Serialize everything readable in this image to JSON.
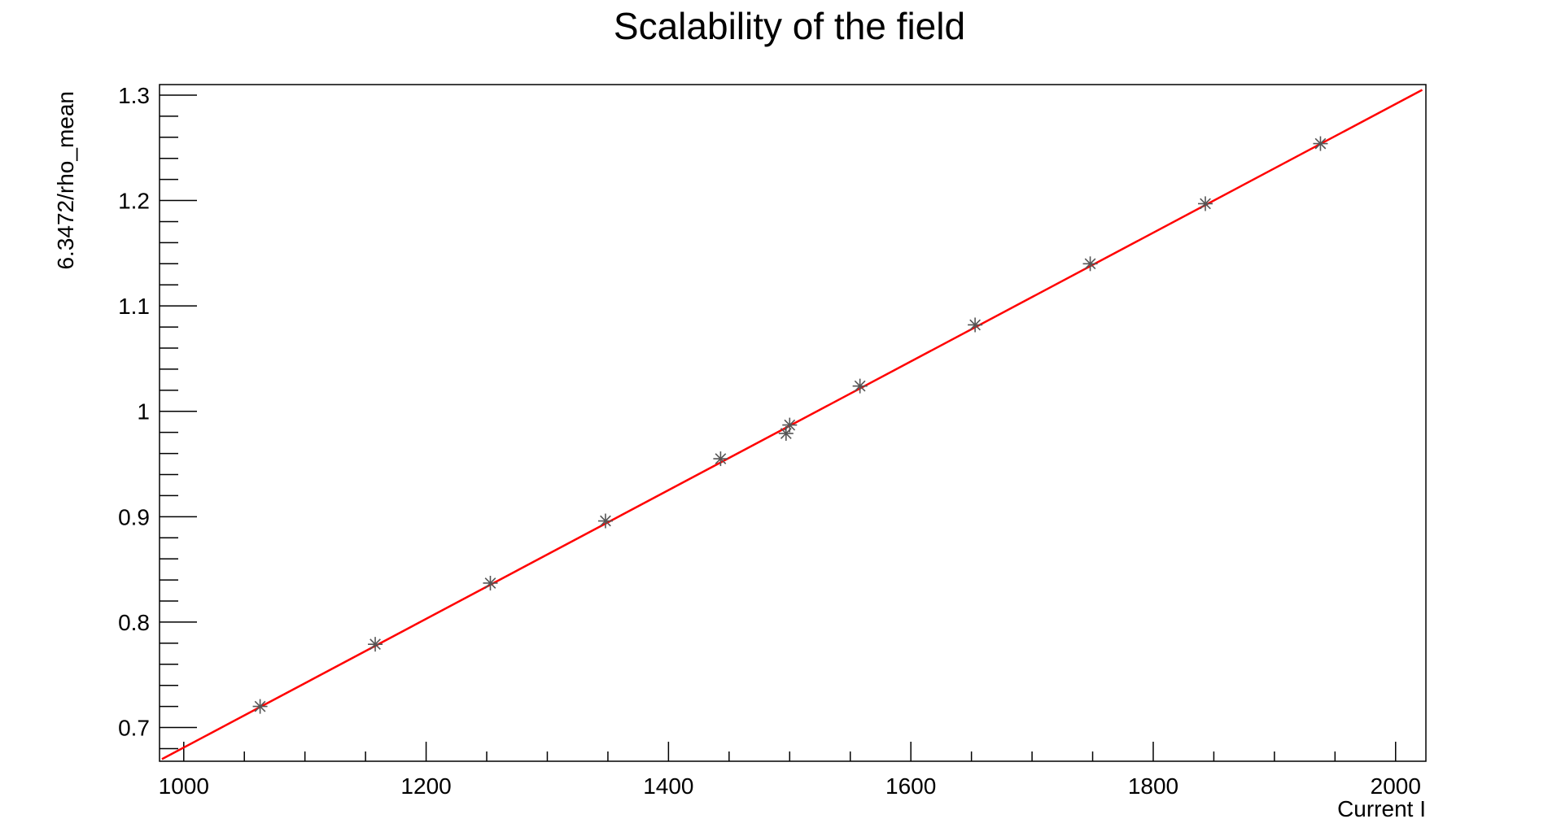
{
  "chart_data": {
    "type": "scatter",
    "title": "Scalability of the field",
    "xlabel": "Current I",
    "ylabel": "6.3472/rho_mean",
    "xlim": [
      980,
      2025
    ],
    "ylim": [
      0.668,
      1.31
    ],
    "x_ticks": [
      1000,
      1200,
      1400,
      1600,
      1800,
      2000
    ],
    "x_tick_labels": [
      "1000",
      "1200",
      "1400",
      "1600",
      "1800",
      "2000"
    ],
    "y_ticks": [
      0.7,
      0.8,
      0.9,
      1.0,
      1.1,
      1.2,
      1.3
    ],
    "y_tick_labels": [
      "0.7",
      "0.8",
      "0.9",
      "1",
      "1.1",
      "1.2",
      "1.3"
    ],
    "grid": false,
    "series": [
      {
        "marker": "asterisk",
        "color": "#555555",
        "x": [
          1063,
          1158,
          1253,
          1348,
          1443,
          1497,
          1500,
          1558,
          1653,
          1748,
          1843,
          1938
        ],
        "y": [
          0.72,
          0.779,
          0.837,
          0.896,
          0.955,
          0.979,
          0.987,
          1.024,
          1.082,
          1.14,
          1.197,
          1.254
        ]
      },
      {
        "type": "line",
        "color": "#ff0000",
        "x": [
          982,
          2022
        ],
        "y": [
          0.67,
          1.305
        ]
      }
    ]
  }
}
